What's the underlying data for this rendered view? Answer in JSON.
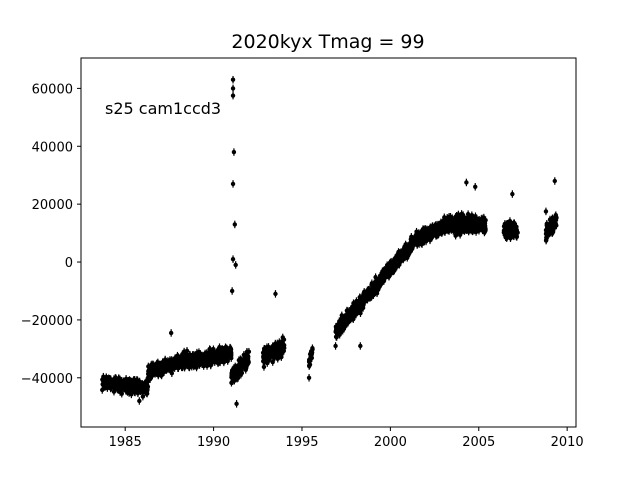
{
  "chart_data": {
    "type": "scatter",
    "title": "2020kyx Tmag = 99",
    "annotation": "s25 cam1ccd3",
    "xlim": [
      1982.5,
      2010.5
    ],
    "ylim": [
      -57000,
      70500
    ],
    "xticks": [
      1985,
      1990,
      1995,
      2000,
      2005,
      2010
    ],
    "yticks": [
      -40000,
      -20000,
      0,
      20000,
      40000,
      60000
    ],
    "xtick_labels": [
      "1985",
      "1990",
      "1995",
      "2000",
      "2005",
      "2010"
    ],
    "ytick_labels": [
      "−40000",
      "−20000",
      "0",
      "20000",
      "40000",
      "60000"
    ],
    "marker": "filled circle with vertical error bar",
    "errorbar_halfwidth": 1300,
    "color": "#000000",
    "segments": [
      {
        "x": [
          1983.7,
          1986.3
        ],
        "y": [
          -41500,
          -43500
        ],
        "spread": 3000
      },
      {
        "x": [
          1986.3,
          1988.5
        ],
        "y": [
          -38000,
          -33500
        ],
        "spread": 2800
      },
      {
        "x": [
          1988.5,
          1991.0
        ],
        "y": [
          -34500,
          -31500
        ],
        "spread": 3000
      },
      {
        "x": [
          1991.0,
          1992.0
        ],
        "y": [
          -40000,
          -33000
        ],
        "spread": 3500
      },
      {
        "x": [
          1992.8,
          1994.0
        ],
        "y": [
          -33000,
          -29000
        ],
        "spread": 3500
      },
      {
        "x": [
          1995.4,
          1995.6
        ],
        "y": [
          -35000,
          -30000
        ],
        "spread": 3000
      },
      {
        "x": [
          1996.9,
          1999.2
        ],
        "y": [
          -24000,
          -8000
        ],
        "spread": 3000
      },
      {
        "x": [
          1999.2,
          2001.5
        ],
        "y": [
          -8000,
          8000
        ],
        "spread": 3000
      },
      {
        "x": [
          2001.5,
          2003.3
        ],
        "y": [
          8000,
          13000
        ],
        "spread": 3000
      },
      {
        "x": [
          2003.3,
          2005.4
        ],
        "y": [
          13000,
          13000
        ],
        "spread": 3800
      },
      {
        "x": [
          2006.4,
          2007.2
        ],
        "y": [
          11000,
          11000
        ],
        "spread": 3500
      },
      {
        "x": [
          2008.8,
          2009.4
        ],
        "y": [
          10000,
          14000
        ],
        "spread": 3000
      }
    ],
    "outliers": [
      {
        "x": 1991.1,
        "y": 63000
      },
      {
        "x": 1991.1,
        "y": 60000
      },
      {
        "x": 1991.1,
        "y": 57500
      },
      {
        "x": 1991.15,
        "y": 38000
      },
      {
        "x": 1991.1,
        "y": 27000
      },
      {
        "x": 1991.2,
        "y": 13000
      },
      {
        "x": 1991.1,
        "y": 1000
      },
      {
        "x": 1991.25,
        "y": -1000
      },
      {
        "x": 1991.05,
        "y": -10000
      },
      {
        "x": 1991.3,
        "y": -49000
      },
      {
        "x": 1993.5,
        "y": -11000
      },
      {
        "x": 1995.4,
        "y": -40000
      },
      {
        "x": 2004.3,
        "y": 27500
      },
      {
        "x": 2004.8,
        "y": 26000
      },
      {
        "x": 2006.9,
        "y": 23500
      },
      {
        "x": 2008.8,
        "y": 17500
      },
      {
        "x": 2009.3,
        "y": 28000
      },
      {
        "x": 1998.3,
        "y": -29000
      },
      {
        "x": 1985.8,
        "y": -48000
      },
      {
        "x": 1987.6,
        "y": -24500
      },
      {
        "x": 1986.0,
        "y": -46500
      },
      {
        "x": 1996.9,
        "y": -29000
      }
    ]
  }
}
